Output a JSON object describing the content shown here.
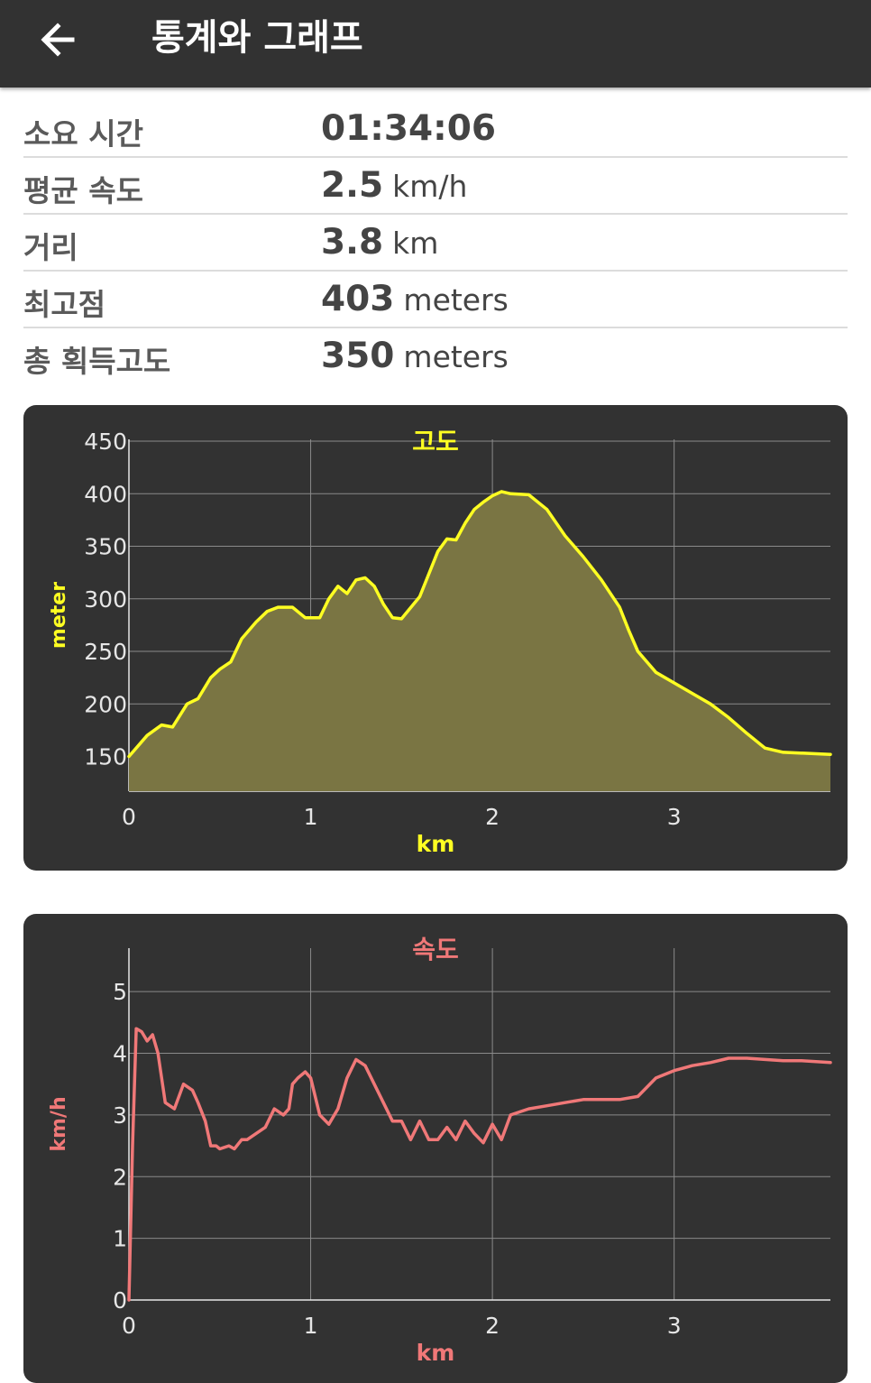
{
  "appbar": {
    "title": "통계와 그래프",
    "back_icon": "arrow-left-icon"
  },
  "stats": [
    {
      "label": "소요 시간",
      "value": "01:34:06",
      "unit": ""
    },
    {
      "label": "평균 속도",
      "value": "2.5",
      "unit": "km/h"
    },
    {
      "label": "거리",
      "value": "3.8",
      "unit": "km"
    },
    {
      "label": "최고점",
      "value": "403",
      "unit": "meters"
    },
    {
      "label": "총 획득고도",
      "value": "350",
      "unit": "meters"
    }
  ],
  "chart_data": [
    {
      "type": "area",
      "title": "고도",
      "xlabel": "km",
      "ylabel": "meter",
      "color": "#ffff22",
      "fill": "#7a7543",
      "grid": true,
      "xlim": [
        0,
        3.86
      ],
      "ylim": [
        117,
        450
      ],
      "x_ticks": [
        "0",
        "1",
        "2",
        "3"
      ],
      "y_ticks": [
        "150",
        "200",
        "250",
        "300",
        "350",
        "400",
        "450"
      ],
      "x": [
        0,
        0.1,
        0.18,
        0.24,
        0.32,
        0.38,
        0.45,
        0.5,
        0.56,
        0.62,
        0.7,
        0.76,
        0.82,
        0.9,
        0.97,
        1.05,
        1.1,
        1.15,
        1.2,
        1.25,
        1.3,
        1.35,
        1.4,
        1.45,
        1.5,
        1.6,
        1.7,
        1.75,
        1.8,
        1.85,
        1.9,
        1.95,
        2.0,
        2.05,
        2.1,
        2.2,
        2.3,
        2.4,
        2.5,
        2.6,
        2.7,
        2.75,
        2.8,
        2.9,
        3.0,
        3.1,
        3.2,
        3.3,
        3.4,
        3.5,
        3.6,
        3.86
      ],
      "y": [
        150,
        170,
        180,
        178,
        200,
        205,
        225,
        233,
        240,
        262,
        278,
        288,
        292,
        292,
        282,
        282,
        300,
        312,
        305,
        318,
        320,
        312,
        295,
        282,
        281,
        302,
        345,
        357,
        356,
        372,
        385,
        392,
        398,
        402,
        400,
        399,
        385,
        360,
        340,
        318,
        292,
        270,
        250,
        230,
        220,
        210,
        200,
        187,
        172,
        158,
        154,
        152
      ]
    },
    {
      "type": "line",
      "title": "속도",
      "xlabel": "km",
      "ylabel": "km/h",
      "color": "#f07878",
      "grid": true,
      "xlim": [
        0,
        3.86
      ],
      "ylim": [
        0,
        5.5
      ],
      "x_ticks": [
        "0",
        "1",
        "2",
        "3"
      ],
      "y_ticks": [
        "0",
        "1",
        "2",
        "3",
        "4",
        "5"
      ],
      "x": [
        0,
        0.02,
        0.04,
        0.07,
        0.1,
        0.13,
        0.16,
        0.2,
        0.25,
        0.3,
        0.35,
        0.38,
        0.42,
        0.45,
        0.48,
        0.5,
        0.55,
        0.58,
        0.62,
        0.65,
        0.7,
        0.75,
        0.8,
        0.85,
        0.88,
        0.9,
        0.93,
        0.97,
        1.0,
        1.05,
        1.1,
        1.15,
        1.2,
        1.25,
        1.3,
        1.35,
        1.4,
        1.45,
        1.5,
        1.55,
        1.6,
        1.65,
        1.7,
        1.75,
        1.8,
        1.85,
        1.9,
        1.95,
        2.0,
        2.05,
        2.1,
        2.15,
        2.2,
        2.3,
        2.4,
        2.5,
        2.6,
        2.7,
        2.8,
        2.9,
        3.0,
        3.1,
        3.2,
        3.3,
        3.4,
        3.5,
        3.6,
        3.7,
        3.86
      ],
      "y": [
        0,
        2.5,
        4.4,
        4.35,
        4.2,
        4.3,
        4.0,
        3.2,
        3.1,
        3.5,
        3.4,
        3.2,
        2.9,
        2.5,
        2.5,
        2.45,
        2.5,
        2.45,
        2.6,
        2.6,
        2.7,
        2.8,
        3.1,
        3.0,
        3.1,
        3.5,
        3.6,
        3.7,
        3.6,
        3.0,
        2.85,
        3.1,
        3.6,
        3.9,
        3.8,
        3.5,
        3.2,
        2.9,
        2.9,
        2.6,
        2.9,
        2.6,
        2.6,
        2.8,
        2.6,
        2.9,
        2.7,
        2.55,
        2.85,
        2.6,
        3.0,
        3.05,
        3.1,
        3.15,
        3.2,
        3.25,
        3.25,
        3.25,
        3.3,
        3.6,
        3.72,
        3.8,
        3.85,
        3.92,
        3.92,
        3.9,
        3.88,
        3.88,
        3.85
      ]
    }
  ]
}
